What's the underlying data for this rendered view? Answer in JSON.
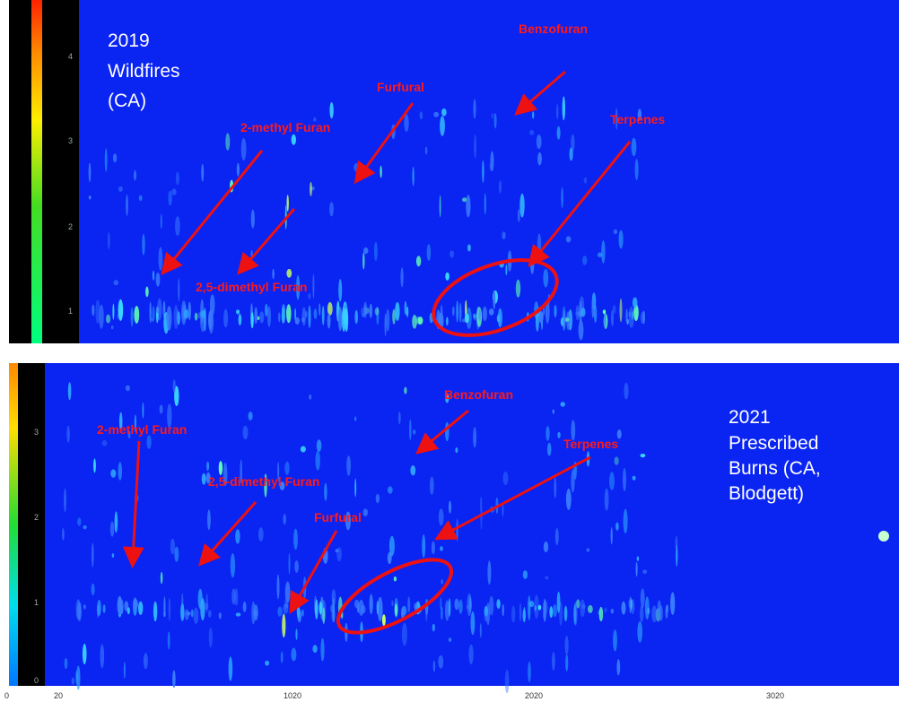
{
  "top_panel": {
    "caption": [
      "2019",
      "Wildfires",
      "(CA)"
    ],
    "annotations": [
      "Benzofuran",
      "Furfural",
      "2-methyl Furan",
      "Terpenes",
      "2,5-dimethyl Furan"
    ],
    "y_tick_labels": [
      "4",
      "3",
      "2",
      "1"
    ]
  },
  "bottom_panel": {
    "caption": [
      "2021",
      "Prescribed",
      "Burns (CA,",
      "Blodgett)"
    ],
    "annotations": [
      "Benzofuran",
      "2-methyl Furan",
      "2,5-dimethyl Furan",
      "Furfural",
      "Terpenes"
    ],
    "y_tick_labels": [
      "3",
      "2",
      "1",
      "0"
    ],
    "x_tick_labels": [
      "0",
      "20",
      "1020",
      "2020",
      "3020"
    ]
  }
}
